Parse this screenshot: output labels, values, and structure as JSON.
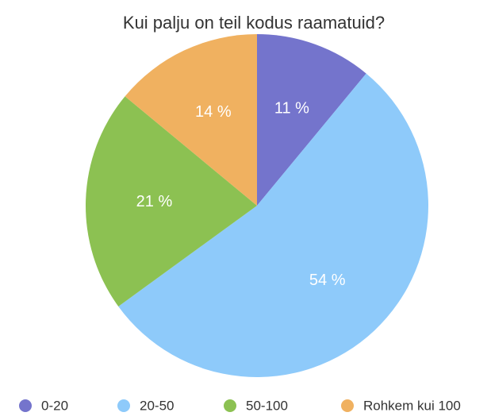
{
  "chart_data": {
    "type": "pie",
    "title": "Kui palju on teil kodus raamatuid?",
    "categories": [
      "0-20",
      "20-50",
      "50-100",
      "Rohkem kui 100"
    ],
    "values": [
      11,
      54,
      21,
      14
    ],
    "value_labels": [
      "11 %",
      "54 %",
      "21 %",
      "14 %"
    ],
    "colors": [
      "#7474cc",
      "#8ecafa",
      "#8cc152",
      "#f0b160"
    ],
    "legend": "bottom"
  }
}
